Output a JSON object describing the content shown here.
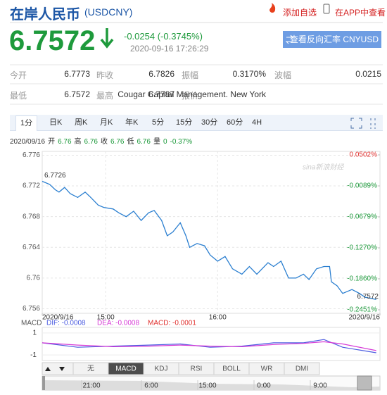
{
  "header": {
    "title": "在岸人民币",
    "code": "(USDCNY)",
    "add": "添加自选",
    "app": "在APP中查看"
  },
  "quote": {
    "price": "6.7572",
    "change": "-0.0254 (-0.3745%)",
    "time": "2020-09-16 17:26:29",
    "reverse_button": "查看反向汇率 CNYUSD"
  },
  "stats": [
    [
      {
        "label": "今开",
        "value": "6.7773"
      },
      {
        "label": "昨收",
        "value": "6.7826"
      },
      {
        "label": "振幅",
        "value": "0.3170%"
      },
      {
        "label": "波幅",
        "value": "0.0215"
      }
    ],
    [
      {
        "label": "最低",
        "value": "6.7572"
      },
      {
        "label": "最高",
        "value": "6.7787"
      },
      {
        "label": "报价",
        "value": "Cougar Capital Management. New York"
      }
    ]
  ],
  "tabs": [
    "1分",
    "日K",
    "周K",
    "月K",
    "年K",
    "5分",
    "15分",
    "30分",
    "60分",
    "4H"
  ],
  "ohlc": [
    "2020/09/16",
    "开",
    "6.76",
    "高",
    "6.76",
    "收",
    "6.76",
    "低",
    "6.76",
    "量",
    "0",
    "-0.37%"
  ],
  "chart_data": [
    {
      "type": "line",
      "color": "#2b7fd0",
      "watermark": "sina新浪财经",
      "x": [
        866,
        870,
        873,
        875,
        878,
        881,
        885,
        889,
        892,
        896,
        899,
        904,
        907,
        911,
        915,
        919,
        923,
        926,
        930,
        933,
        936,
        940,
        943,
        945,
        949,
        953,
        956,
        960,
        964,
        968,
        973,
        977,
        981,
        987,
        990,
        994,
        998,
        1002,
        1006,
        1009,
        1013,
        1017,
        1020,
        1021,
        1024,
        1027,
        1032,
        1036,
        1039,
        1045
      ],
      "values": [
        6.7726,
        6.7722,
        6.7715,
        6.7712,
        6.7718,
        6.771,
        6.7705,
        6.7712,
        6.7705,
        6.7695,
        6.7692,
        6.769,
        6.7685,
        6.768,
        6.7687,
        6.7675,
        6.7685,
        6.7688,
        6.7675,
        6.7655,
        6.766,
        6.7672,
        6.7655,
        6.764,
        6.7645,
        6.7642,
        6.763,
        6.7622,
        6.7628,
        6.7612,
        6.7605,
        6.7615,
        6.7605,
        6.762,
        6.7615,
        6.7622,
        6.76,
        6.76,
        6.7605,
        6.7598,
        6.7612,
        6.7615,
        6.7615,
        6.7595,
        6.759,
        6.758,
        6.7585,
        6.758,
        6.7575,
        6.7572
      ],
      "xlim": [
        866,
        1047
      ],
      "xticks": [
        {
          "value": 866,
          "label": "2020/9/16"
        },
        {
          "value": 900,
          "label": "15:00"
        },
        {
          "value": 960,
          "label": "16:00"
        },
        {
          "value": 1047,
          "label": "2020/9/16"
        }
      ],
      "ylim": [
        6.7554,
        6.7765
      ],
      "yticks": [
        6.776,
        6.772,
        6.768,
        6.764,
        6.76,
        6.756
      ],
      "y2lim": [
        -0.2518,
        0.0569
      ],
      "y2ticks": [
        {
          "value": 0.0502,
          "label": "0.0502%"
        },
        {
          "value": -0.0089,
          "label": "-0.0089%"
        },
        {
          "value": -0.0679,
          "label": "-0.0679%"
        },
        {
          "value": -0.127,
          "label": "-0.1270%"
        },
        {
          "value": -0.186,
          "label": "-0.1860%"
        },
        {
          "value": -0.2451,
          "label": "-0.2451%"
        }
      ],
      "annotations": [
        {
          "x": 866,
          "y": 6.7726,
          "text": "6.7726"
        },
        {
          "x": 1045,
          "y": 6.7572,
          "text": "6.7572"
        }
      ],
      "grid": true
    },
    {
      "type": "line",
      "labels": [
        "MACD",
        "DIF: -0.0008",
        "DEA: -0.0008",
        "MACD: -0.0001"
      ],
      "x": [
        866,
        885,
        904,
        923,
        940,
        956,
        973,
        990,
        1006,
        1017,
        1027,
        1045
      ],
      "xlim": [
        866,
        1047
      ],
      "series": [
        {
          "color": "#4a5be0",
          "values": [
            0.1,
            -0.3,
            -0.2,
            -0.1,
            0,
            -0.3,
            -0.2,
            0.1,
            0.1,
            0.4,
            -0.3,
            -0.8
          ]
        },
        {
          "color": "#d63ad6",
          "values": [
            0.1,
            -0.1,
            -0.25,
            -0.2,
            -0.1,
            -0.2,
            -0.25,
            -0.05,
            0.05,
            0.2,
            0,
            -0.6
          ]
        }
      ],
      "ylim": [
        -1.5,
        1.5
      ],
      "yticks": [
        1,
        -1
      ]
    }
  ],
  "indicators": [
    "无",
    "MACD",
    "KDJ",
    "RSI",
    "BOLL",
    "WR",
    "DMI"
  ],
  "navigator": {
    "labels": [
      "21:00",
      "6:00",
      "15:00",
      "0:00",
      "9:00"
    ]
  }
}
